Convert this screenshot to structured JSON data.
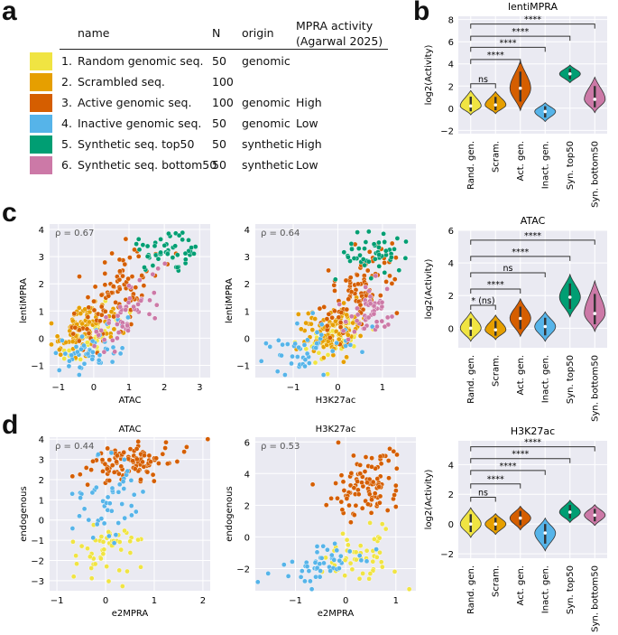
{
  "panels": {
    "a": "a",
    "b": "b",
    "c": "c",
    "d": "d"
  },
  "table": {
    "headers": {
      "name": "name",
      "n": "N",
      "origin": "origin",
      "mpra_line1": "MPRA activity",
      "mpra_line2": "(Agarwal 2025)"
    },
    "rows": [
      {
        "num": "1.",
        "name": "Random genomic seq.",
        "n": "50",
        "origin": "genomic",
        "activity": "",
        "color": "#f0e442"
      },
      {
        "num": "2.",
        "name": "Scrambled seq.",
        "n": "100",
        "origin": "",
        "activity": "",
        "color": "#e69f00"
      },
      {
        "num": "3.",
        "name": "Active genomic seq.",
        "n": "100",
        "origin": "genomic",
        "activity": "High",
        "color": "#d55e00"
      },
      {
        "num": "4.",
        "name": "Inactive genomic seq.",
        "n": "50",
        "origin": "genomic",
        "activity": "Low",
        "color": "#56b4e9"
      },
      {
        "num": "5.",
        "name": "Synthetic seq. top50",
        "n": "50",
        "origin": "synthetic",
        "activity": "High",
        "color": "#009e73"
      },
      {
        "num": "6.",
        "name": "Synthetic seq. bottom50",
        "n": "50",
        "origin": "synthetic",
        "activity": "Low",
        "color": "#cc79a7"
      }
    ]
  },
  "chart_data": [
    {
      "type": "violin",
      "panel": "b",
      "title": "lentiMPRA",
      "ylabel": "log2(Activity)",
      "categories": [
        "Rand. gen.",
        "Scram.",
        "Act. gen.",
        "Inact. gen.",
        "Syn. top50",
        "Syn. bottom50"
      ],
      "colors": [
        "#f0e442",
        "#e69f00",
        "#d55e00",
        "#56b4e9",
        "#009e73",
        "#cc79a7"
      ],
      "medians": [
        0.2,
        0.3,
        1.8,
        -0.3,
        3.1,
        0.8
      ],
      "ranges": [
        [
          -0.6,
          1.6
        ],
        [
          -0.5,
          1.5
        ],
        [
          -0.2,
          4.3
        ],
        [
          -1.2,
          0.5
        ],
        [
          2.3,
          3.9
        ],
        [
          -0.4,
          2.8
        ]
      ],
      "ylim": [
        -2.3,
        8.3
      ],
      "yticks": [
        -2,
        0,
        2,
        4,
        6,
        8
      ],
      "comparisons": [
        {
          "to": 1,
          "label": "ns",
          "y": 2.2
        },
        {
          "to": 2,
          "label": "****",
          "y": 4.4
        },
        {
          "to": 3,
          "label": "****",
          "y": 5.5
        },
        {
          "to": 4,
          "label": "****",
          "y": 6.5
        },
        {
          "to": 5,
          "label": "****",
          "y": 7.6
        }
      ]
    },
    {
      "type": "violin",
      "panel": "c",
      "title": "ATAC",
      "ylabel": "log2(Activity)",
      "categories": [
        "Rand. gen.",
        "Scram.",
        "Act. gen.",
        "Inact. gen.",
        "Syn. top50",
        "Syn. bottom50"
      ],
      "colors": [
        "#f0e442",
        "#e69f00",
        "#d55e00",
        "#56b4e9",
        "#009e73",
        "#cc79a7"
      ],
      "medians": [
        0.0,
        -0.1,
        0.6,
        0.1,
        1.9,
        0.9
      ],
      "ranges": [
        [
          -0.8,
          1.0
        ],
        [
          -0.7,
          0.8
        ],
        [
          -0.5,
          1.8
        ],
        [
          -0.8,
          1.0
        ],
        [
          0.7,
          3.3
        ],
        [
          -0.2,
          2.9
        ]
      ],
      "ylim": [
        -1.2,
        6.0
      ],
      "yticks": [
        0,
        2,
        4,
        6
      ],
      "comparisons": [
        {
          "to": 1,
          "label": "* (ns)",
          "y": 1.4
        },
        {
          "to": 2,
          "label": "****",
          "y": 2.4
        },
        {
          "to": 3,
          "label": "ns",
          "y": 3.4
        },
        {
          "to": 4,
          "label": "****",
          "y": 4.4
        },
        {
          "to": 5,
          "label": "****",
          "y": 5.4
        }
      ]
    },
    {
      "type": "violin",
      "panel": "d",
      "title": "H3K27ac",
      "ylabel": "log2(Activity)",
      "categories": [
        "Rand. gen.",
        "Scram.",
        "Act. gen.",
        "Inact. gen.",
        "Syn. top50",
        "Syn. bottom50"
      ],
      "colors": [
        "#f0e442",
        "#e69f00",
        "#d55e00",
        "#56b4e9",
        "#009e73",
        "#cc79a7"
      ],
      "medians": [
        0.0,
        0.0,
        0.4,
        -0.6,
        0.8,
        0.6
      ],
      "ranges": [
        [
          -0.9,
          1.1
        ],
        [
          -0.7,
          0.7
        ],
        [
          -0.4,
          1.2
        ],
        [
          -1.8,
          0.4
        ],
        [
          0.1,
          1.6
        ],
        [
          -0.1,
          1.3
        ]
      ],
      "ylim": [
        -2.3,
        5.6
      ],
      "yticks": [
        -2,
        0,
        2,
        4
      ],
      "comparisons": [
        {
          "to": 1,
          "label": "ns",
          "y": 1.8
        },
        {
          "to": 2,
          "label": "****",
          "y": 2.7
        },
        {
          "to": 3,
          "label": "****",
          "y": 3.6
        },
        {
          "to": 4,
          "label": "****",
          "y": 4.4
        },
        {
          "to": 5,
          "label": "****",
          "y": 5.2
        }
      ]
    },
    {
      "type": "scatter",
      "panel": "c",
      "xlabel": "ATAC",
      "ylabel": "lentiMPRA",
      "annotation": "ρ = 0.67",
      "xlim": [
        -1.25,
        3.3
      ],
      "ylim": [
        -1.45,
        4.2
      ],
      "xticks": [
        -1,
        0,
        1,
        2,
        3
      ],
      "yticks": [
        -1,
        0,
        1,
        2,
        3,
        4
      ],
      "groups": [
        {
          "name": "Random genomic",
          "color": "#f0e442",
          "count": 50,
          "x_mean": 0.0,
          "x_sd": 0.45,
          "slope": 0.75,
          "y_base": 0.1,
          "y_sd": 0.4
        },
        {
          "name": "Scrambled",
          "color": "#e69f00",
          "count": 100,
          "x_mean": -0.3,
          "x_sd": 0.4,
          "slope": 0.6,
          "y_base": 0.3,
          "y_sd": 0.45
        },
        {
          "name": "Active genomic",
          "color": "#d55e00",
          "count": 100,
          "x_mean": 0.6,
          "x_sd": 0.6,
          "slope": 1.1,
          "y_base": 1.6,
          "y_sd": 0.7
        },
        {
          "name": "Inactive genomic",
          "color": "#56b4e9",
          "count": 50,
          "x_mean": 0.0,
          "x_sd": 0.45,
          "slope": 0.4,
          "y_base": -0.4,
          "y_sd": 0.45
        },
        {
          "name": "Synthetic top50",
          "color": "#009e73",
          "count": 50,
          "x_mean": 2.0,
          "x_sd": 0.5,
          "slope": 0.2,
          "y_base": 3.1,
          "y_sd": 0.35
        },
        {
          "name": "Synthetic bottom50",
          "color": "#cc79a7",
          "count": 50,
          "x_mean": 1.0,
          "x_sd": 0.5,
          "slope": 0.9,
          "y_base": 0.9,
          "y_sd": 0.5
        }
      ]
    },
    {
      "type": "scatter",
      "panel": "c",
      "xlabel": "H3K27ac",
      "ylabel": "lentiMPRA",
      "annotation": "ρ = 0.64",
      "xlim": [
        -1.85,
        1.75
      ],
      "ylim": [
        -1.45,
        4.2
      ],
      "xticks": [
        -1,
        0,
        1
      ],
      "yticks": [
        -1,
        0,
        1,
        2,
        3,
        4
      ],
      "groups": [
        {
          "name": "Random genomic",
          "color": "#f0e442",
          "count": 50,
          "x_mean": 0.0,
          "x_sd": 0.4,
          "slope": 0.6,
          "y_base": 0.1,
          "y_sd": 0.4
        },
        {
          "name": "Scrambled",
          "color": "#e69f00",
          "count": 100,
          "x_mean": -0.1,
          "x_sd": 0.35,
          "slope": 0.5,
          "y_base": 0.3,
          "y_sd": 0.45
        },
        {
          "name": "Active genomic",
          "color": "#d55e00",
          "count": 100,
          "x_mean": 0.4,
          "x_sd": 0.4,
          "slope": 1.2,
          "y_base": 1.6,
          "y_sd": 0.7
        },
        {
          "name": "Inactive genomic",
          "color": "#56b4e9",
          "count": 50,
          "x_mean": -0.7,
          "x_sd": 0.5,
          "slope": 0.3,
          "y_base": -0.4,
          "y_sd": 0.45
        },
        {
          "name": "Synthetic top50",
          "color": "#009e73",
          "count": 50,
          "x_mean": 0.8,
          "x_sd": 0.35,
          "slope": 0.4,
          "y_base": 3.1,
          "y_sd": 0.4
        },
        {
          "name": "Synthetic bottom50",
          "color": "#cc79a7",
          "count": 50,
          "x_mean": 0.7,
          "x_sd": 0.35,
          "slope": 0.8,
          "y_base": 0.9,
          "y_sd": 0.5
        }
      ]
    },
    {
      "type": "scatter",
      "panel": "d",
      "title": "ATAC",
      "xlabel": "e2MPRA",
      "ylabel": "endogenous",
      "annotation": "ρ = 0.44",
      "xlim": [
        -1.15,
        2.15
      ],
      "ylim": [
        -3.5,
        4.1
      ],
      "xticks": [
        -1,
        0,
        1,
        2
      ],
      "yticks": [
        -3,
        -2,
        -1,
        0,
        1,
        2,
        3,
        4
      ],
      "groups": [
        {
          "name": "Random genomic",
          "color": "#f0e442",
          "count": 50,
          "x_mean": 0.05,
          "x_sd": 0.35,
          "slope": 0.3,
          "y_base": -1.3,
          "y_sd": 0.8
        },
        {
          "name": "Active genomic",
          "color": "#d55e00",
          "count": 100,
          "x_mean": 0.5,
          "x_sd": 0.45,
          "slope": 0.4,
          "y_base": 2.9,
          "y_sd": 0.5
        },
        {
          "name": "Inactive genomic",
          "color": "#56b4e9",
          "count": 50,
          "x_mean": 0.1,
          "x_sd": 0.35,
          "slope": 0.8,
          "y_base": 0.9,
          "y_sd": 1.1
        }
      ]
    },
    {
      "type": "scatter",
      "panel": "d",
      "title": "H3K27ac",
      "xlabel": "e2MPRA",
      "ylabel": "endogenous",
      "annotation": "ρ = 0.53",
      "xlim": [
        -1.8,
        1.4
      ],
      "ylim": [
        -3.4,
        6.3
      ],
      "xticks": [
        -1,
        0,
        1
      ],
      "yticks": [
        -2,
        0,
        2,
        4,
        6
      ],
      "groups": [
        {
          "name": "Random genomic",
          "color": "#f0e442",
          "count": 50,
          "x_mean": 0.2,
          "x_sd": 0.4,
          "slope": 0.2,
          "y_base": -1.2,
          "y_sd": 0.9
        },
        {
          "name": "Active genomic",
          "color": "#d55e00",
          "count": 100,
          "x_mean": 0.4,
          "x_sd": 0.35,
          "slope": 0.5,
          "y_base": 3.4,
          "y_sd": 1.2
        },
        {
          "name": "Inactive genomic",
          "color": "#56b4e9",
          "count": 50,
          "x_mean": -0.5,
          "x_sd": 0.55,
          "slope": 0.4,
          "y_base": -1.7,
          "y_sd": 0.6
        }
      ]
    }
  ]
}
